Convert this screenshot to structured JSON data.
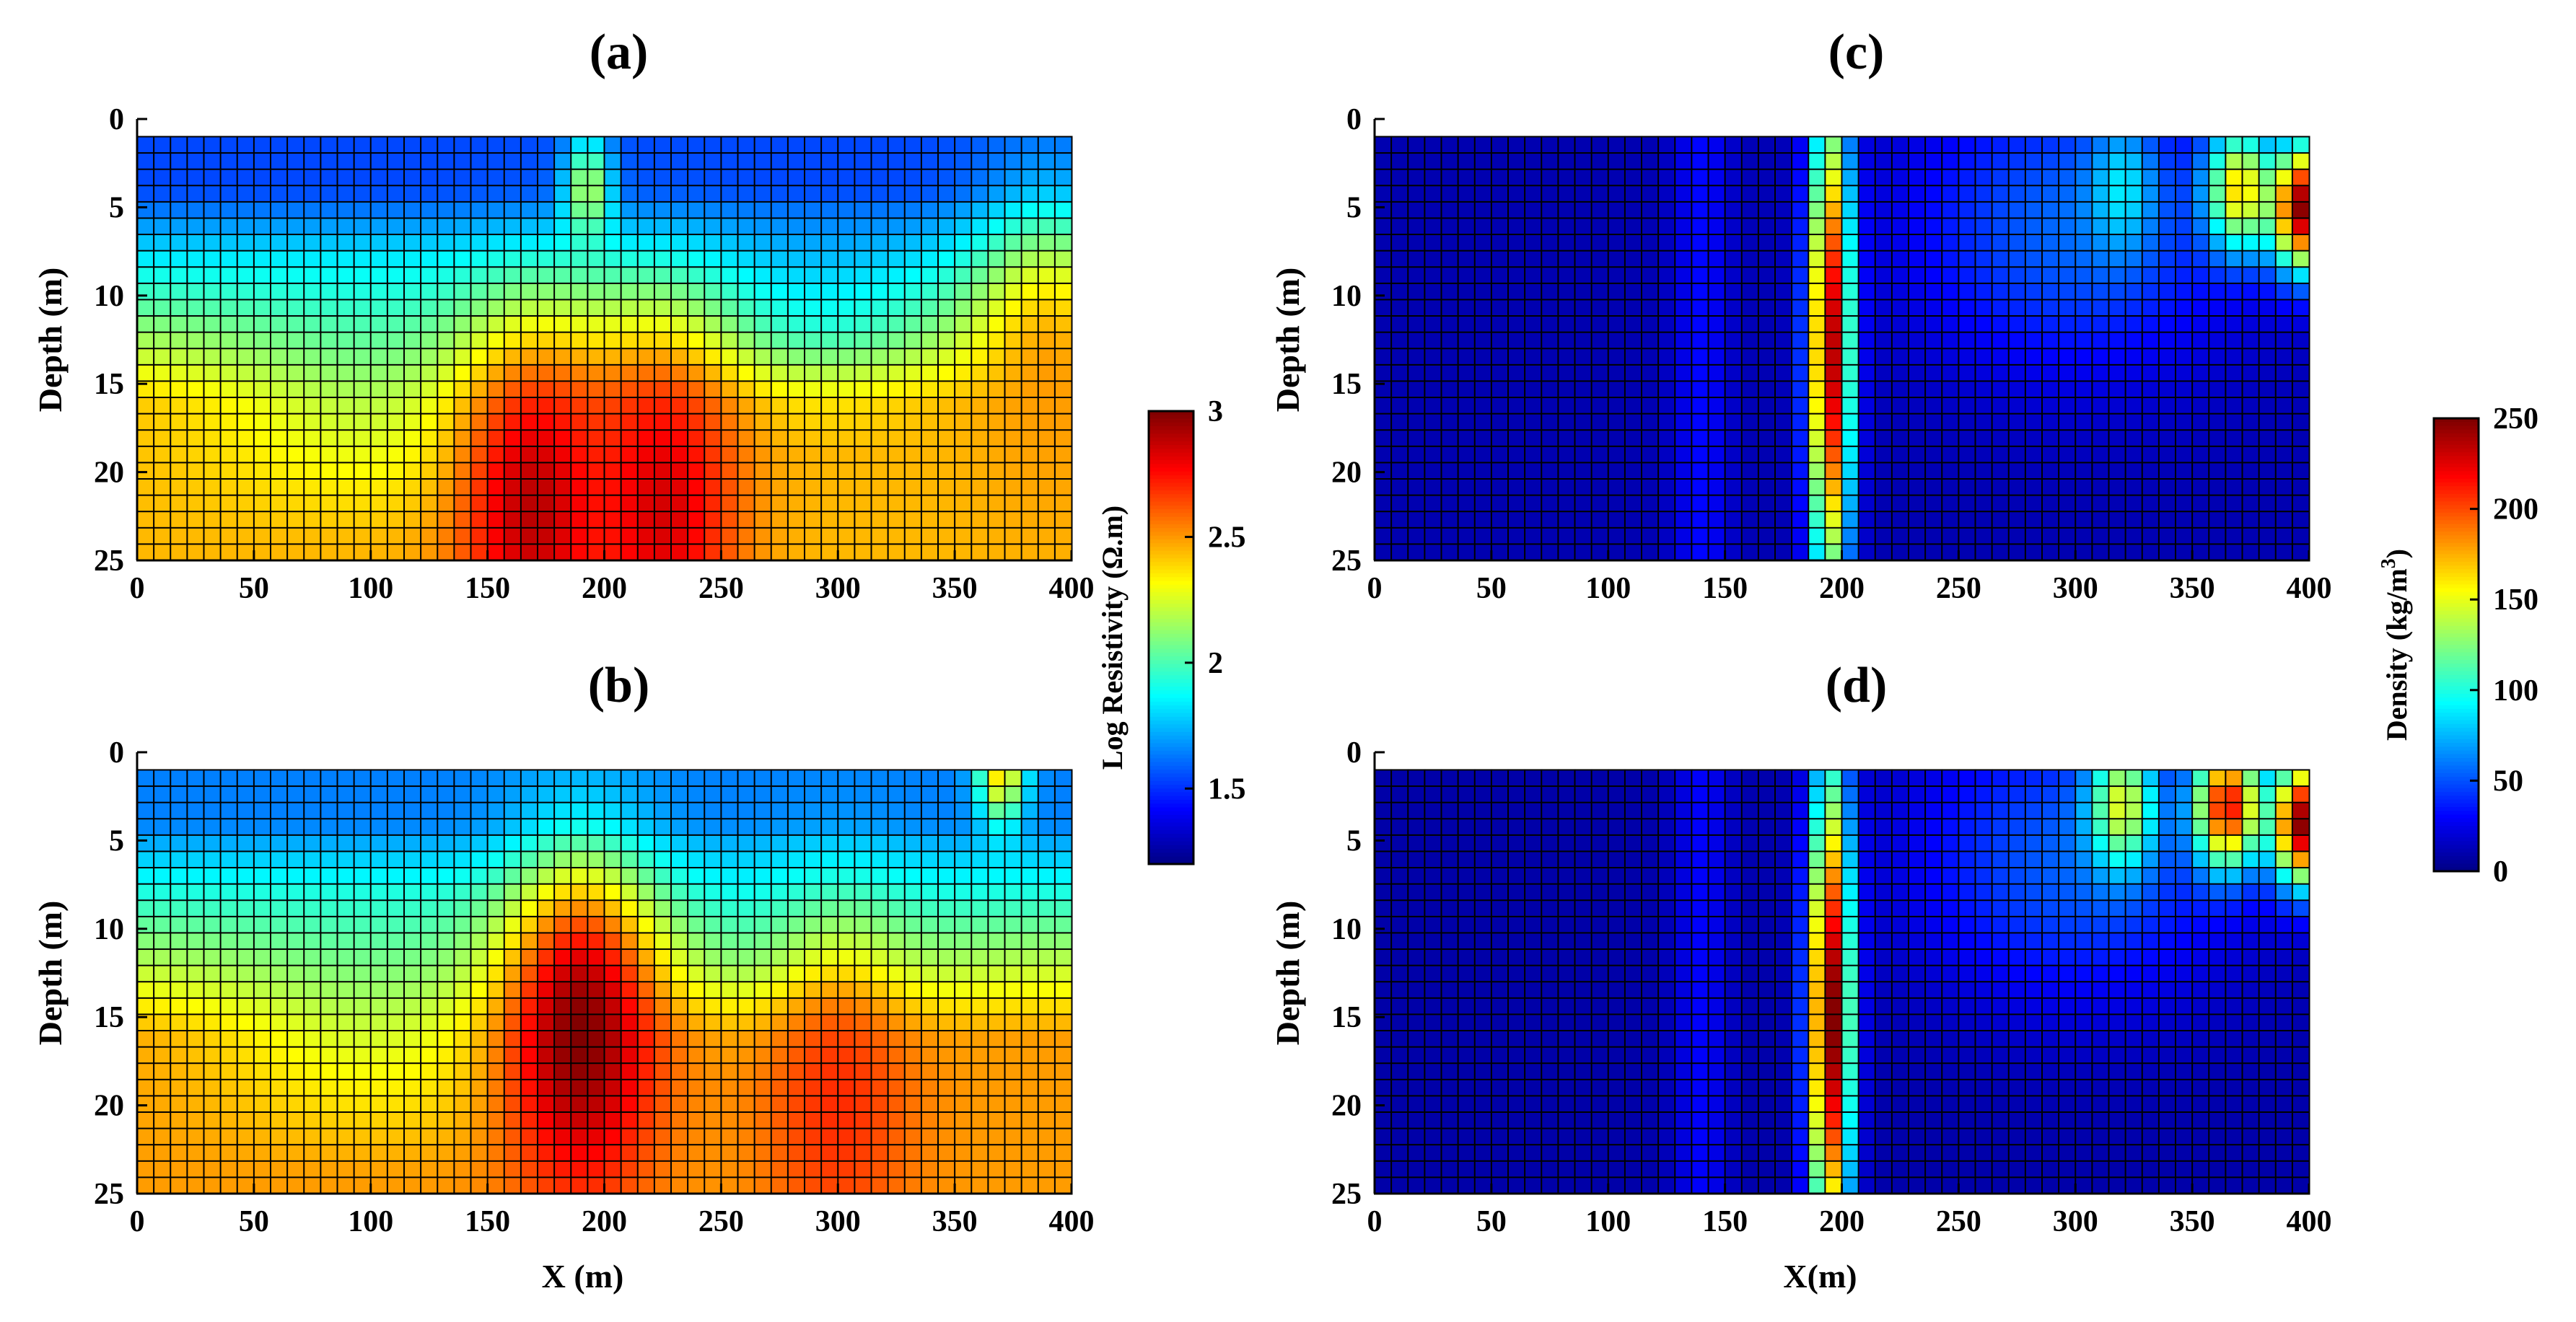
{
  "chart_data": [
    {
      "id": "a",
      "type": "heatmap",
      "title": "(a)",
      "xlabel": "",
      "ylabel": "Depth (m)",
      "xlim": [
        0,
        400
      ],
      "ylim": [
        0,
        25
      ],
      "x_ticks": [
        0,
        50,
        100,
        150,
        200,
        250,
        300,
        350,
        400
      ],
      "y_ticks": [
        0,
        5,
        10,
        15,
        20,
        25
      ],
      "y_reversed": true,
      "colorscale": "jet",
      "value_range": [
        1.2,
        3.0
      ],
      "field": {
        "background_near_surface": 1.55,
        "background_deep": 2.45,
        "anomalies": [
          {
            "x": 170,
            "depth": 22,
            "value": 2.9
          },
          {
            "x": 225,
            "depth": 22,
            "value": 2.85
          },
          {
            "x": 193,
            "depth": 4,
            "value": 2.2
          },
          {
            "x": 390,
            "depth": 15,
            "value": 2.5
          }
        ]
      }
    },
    {
      "id": "b",
      "type": "heatmap",
      "title": "(b)",
      "xlabel": "X (m)",
      "ylabel": "Depth (m)",
      "xlim": [
        0,
        400
      ],
      "ylim": [
        0,
        25
      ],
      "x_ticks": [
        0,
        50,
        100,
        150,
        200,
        250,
        300,
        350,
        400
      ],
      "y_ticks": [
        0,
        5,
        10,
        15,
        20,
        25
      ],
      "y_reversed": true,
      "colorscale": "jet",
      "value_range": [
        1.2,
        3.0
      ],
      "field": {
        "background_near_surface": 1.65,
        "background_deep": 2.5,
        "anomalies": [
          {
            "x": 190,
            "depth": 16,
            "value": 3.0
          },
          {
            "x": 300,
            "depth": 20,
            "value": 2.7
          },
          {
            "x": 370,
            "depth": 1,
            "value": 2.4
          }
        ]
      }
    },
    {
      "id": "c",
      "type": "heatmap",
      "title": "(c)",
      "xlabel": "",
      "ylabel": "Depth (m)",
      "xlim": [
        0,
        400
      ],
      "ylim": [
        0,
        25
      ],
      "x_ticks": [
        0,
        50,
        100,
        150,
        200,
        250,
        300,
        350,
        400
      ],
      "y_ticks": [
        0,
        5,
        10,
        15,
        20,
        25
      ],
      "y_reversed": true,
      "colorscale": "jet",
      "value_range": [
        0,
        250
      ],
      "field": {
        "background": 12,
        "anomalies": [
          {
            "x": 195,
            "depth": 13,
            "value": 240
          },
          {
            "x": 370,
            "depth": 4,
            "value": 165
          },
          {
            "x": 398,
            "depth": 5,
            "value": 250
          },
          {
            "x": 320,
            "depth": 4,
            "value": 90
          }
        ]
      }
    },
    {
      "id": "d",
      "type": "heatmap",
      "title": "(d)",
      "xlabel": "X(m)",
      "ylabel": "Depth (m)",
      "xlim": [
        0,
        400
      ],
      "ylim": [
        0,
        25
      ],
      "x_ticks": [
        0,
        50,
        100,
        150,
        200,
        250,
        300,
        350,
        400
      ],
      "y_ticks": [
        0,
        5,
        10,
        15,
        20,
        25
      ],
      "y_reversed": true,
      "colorscale": "jet",
      "value_range": [
        0,
        250
      ],
      "field": {
        "background": 10,
        "anomalies": [
          {
            "x": 195,
            "depth": 15,
            "value": 255
          },
          {
            "x": 365,
            "depth": 3,
            "value": 220
          },
          {
            "x": 320,
            "depth": 3,
            "value": 150
          },
          {
            "x": 398,
            "depth": 4,
            "value": 250
          }
        ]
      }
    }
  ],
  "colorbars": [
    {
      "id": "resistivity",
      "label": "Log Resistivity (Ω.m)",
      "range": [
        1.2,
        3.0
      ],
      "ticks": [
        "3",
        "2.5",
        "2",
        "1.5"
      ],
      "tick_values": [
        3,
        2.5,
        2,
        1.5
      ]
    },
    {
      "id": "density",
      "label": "Density (kg/m",
      "label_sup": "3",
      "label_end": ")",
      "range": [
        0,
        250
      ],
      "ticks": [
        "250",
        "200",
        "150",
        "100",
        "50",
        "0"
      ],
      "tick_values": [
        250,
        200,
        150,
        100,
        50,
        0
      ]
    }
  ]
}
